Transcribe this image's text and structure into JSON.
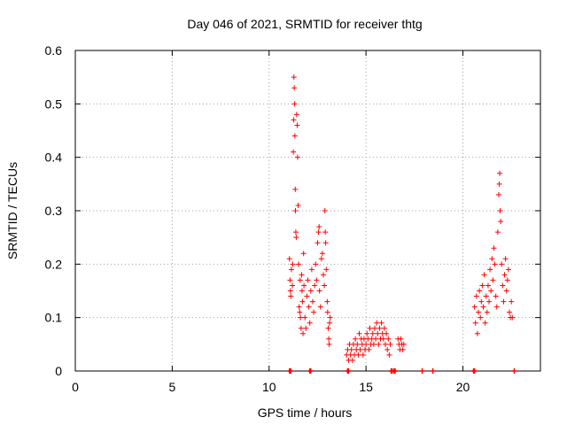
{
  "chart_data": {
    "type": "scatter",
    "title": "Day 046 of 2021, SRMTID for receiver thtg",
    "xlabel": "GPS time / hours",
    "ylabel": "SRMTID / TECUs",
    "xlim": [
      0,
      24
    ],
    "ylim": [
      0,
      0.6
    ],
    "xticks": [
      0,
      5,
      10,
      15,
      20
    ],
    "yticks": [
      0,
      0.1,
      0.2,
      0.3,
      0.4,
      0.5,
      0.6
    ],
    "grid": true,
    "marker": "+",
    "series": [
      {
        "name": "SRMTID",
        "color": "#ff0000",
        "points": [
          [
            11.05,
            0.21
          ],
          [
            11.08,
            0.17
          ],
          [
            11.1,
            0.15
          ],
          [
            11.12,
            0.14
          ],
          [
            11.15,
            0.19
          ],
          [
            11.2,
            0.16
          ],
          [
            11.22,
            0.2
          ],
          [
            11.25,
            0.41
          ],
          [
            11.27,
            0.47
          ],
          [
            11.28,
            0.55
          ],
          [
            11.3,
            0.53
          ],
          [
            11.32,
            0.5
          ],
          [
            11.33,
            0.44
          ],
          [
            11.35,
            0.34
          ],
          [
            11.36,
            0.3
          ],
          [
            11.38,
            0.26
          ],
          [
            11.4,
            0.25
          ],
          [
            11.42,
            0.48
          ],
          [
            11.45,
            0.46
          ],
          [
            11.47,
            0.4
          ],
          [
            11.5,
            0.31
          ],
          [
            11.52,
            0.2
          ],
          [
            11.55,
            0.12
          ],
          [
            11.58,
            0.11
          ],
          [
            11.6,
            0.17
          ],
          [
            11.62,
            0.1
          ],
          [
            11.65,
            0.08
          ],
          [
            11.68,
            0.18
          ],
          [
            11.7,
            0.15
          ],
          [
            11.72,
            0.13
          ],
          [
            11.75,
            0.07
          ],
          [
            11.78,
            0.22
          ],
          [
            11.8,
            0.16
          ],
          [
            11.85,
            0.1
          ],
          [
            11.9,
            0.08
          ],
          [
            11.95,
            0.14
          ],
          [
            12.0,
            0.17
          ],
          [
            12.05,
            0.12
          ],
          [
            12.1,
            0.09
          ],
          [
            12.15,
            0.15
          ],
          [
            12.2,
            0.19
          ],
          [
            12.25,
            0.13
          ],
          [
            12.3,
            0.11
          ],
          [
            12.35,
            0.16
          ],
          [
            12.4,
            0.2
          ],
          [
            12.45,
            0.17
          ],
          [
            12.5,
            0.24
          ],
          [
            12.55,
            0.26
          ],
          [
            12.58,
            0.27
          ],
          [
            12.6,
            0.15
          ],
          [
            12.65,
            0.12
          ],
          [
            12.7,
            0.21
          ],
          [
            12.75,
            0.22
          ],
          [
            12.8,
            0.18
          ],
          [
            12.85,
            0.16
          ],
          [
            12.88,
            0.3
          ],
          [
            12.9,
            0.26
          ],
          [
            12.92,
            0.24
          ],
          [
            12.95,
            0.19
          ],
          [
            13.0,
            0.13
          ],
          [
            13.02,
            0.11
          ],
          [
            13.05,
            0.08
          ],
          [
            13.08,
            0.06
          ],
          [
            13.1,
            0.05
          ],
          [
            13.12,
            0.09
          ],
          [
            13.15,
            0.1
          ],
          [
            14.0,
            0.03
          ],
          [
            14.05,
            0.04
          ],
          [
            14.1,
            0.02
          ],
          [
            14.15,
            0.05
          ],
          [
            14.2,
            0.03
          ],
          [
            14.25,
            0.04
          ],
          [
            14.3,
            0.02
          ],
          [
            14.35,
            0.05
          ],
          [
            14.4,
            0.03
          ],
          [
            14.45,
            0.06
          ],
          [
            14.5,
            0.04
          ],
          [
            14.55,
            0.05
          ],
          [
            14.6,
            0.03
          ],
          [
            14.65,
            0.07
          ],
          [
            14.7,
            0.04
          ],
          [
            14.75,
            0.06
          ],
          [
            14.8,
            0.05
          ],
          [
            14.85,
            0.03
          ],
          [
            14.9,
            0.06
          ],
          [
            14.95,
            0.04
          ],
          [
            15.0,
            0.05
          ],
          [
            15.05,
            0.07
          ],
          [
            15.1,
            0.06
          ],
          [
            15.15,
            0.04
          ],
          [
            15.2,
            0.08
          ],
          [
            15.25,
            0.05
          ],
          [
            15.3,
            0.06
          ],
          [
            15.35,
            0.07
          ],
          [
            15.4,
            0.05
          ],
          [
            15.45,
            0.08
          ],
          [
            15.5,
            0.06
          ],
          [
            15.55,
            0.09
          ],
          [
            15.6,
            0.07
          ],
          [
            15.65,
            0.05
          ],
          [
            15.7,
            0.08
          ],
          [
            15.75,
            0.06
          ],
          [
            15.8,
            0.09
          ],
          [
            15.85,
            0.07
          ],
          [
            15.9,
            0.06
          ],
          [
            15.95,
            0.08
          ],
          [
            16.0,
            0.05
          ],
          [
            16.05,
            0.07
          ],
          [
            16.1,
            0.04
          ],
          [
            16.15,
            0.06
          ],
          [
            16.2,
            0.03
          ],
          [
            16.25,
            0.05
          ],
          [
            16.65,
            0.06
          ],
          [
            16.7,
            0.05
          ],
          [
            16.75,
            0.04
          ],
          [
            16.8,
            0.06
          ],
          [
            16.85,
            0.05
          ],
          [
            16.9,
            0.04
          ],
          [
            16.95,
            0.05
          ],
          [
            20.6,
            0.12
          ],
          [
            20.65,
            0.09
          ],
          [
            20.7,
            0.14
          ],
          [
            20.75,
            0.07
          ],
          [
            20.8,
            0.11
          ],
          [
            20.85,
            0.15
          ],
          [
            20.9,
            0.1
          ],
          [
            20.95,
            0.13
          ],
          [
            21.0,
            0.16
          ],
          [
            21.05,
            0.12
          ],
          [
            21.1,
            0.18
          ],
          [
            21.15,
            0.09
          ],
          [
            21.2,
            0.14
          ],
          [
            21.25,
            0.11
          ],
          [
            21.3,
            0.16
          ],
          [
            21.35,
            0.13
          ],
          [
            21.4,
            0.19
          ],
          [
            21.45,
            0.15
          ],
          [
            21.5,
            0.21
          ],
          [
            21.55,
            0.17
          ],
          [
            21.6,
            0.23
          ],
          [
            21.65,
            0.2
          ],
          [
            21.7,
            0.14
          ],
          [
            21.75,
            0.12
          ],
          [
            21.8,
            0.26
          ],
          [
            21.85,
            0.33
          ],
          [
            21.88,
            0.35
          ],
          [
            21.9,
            0.37
          ],
          [
            21.92,
            0.3
          ],
          [
            21.95,
            0.28
          ],
          [
            22.0,
            0.2
          ],
          [
            22.05,
            0.16
          ],
          [
            22.1,
            0.13
          ],
          [
            22.15,
            0.18
          ],
          [
            22.2,
            0.21
          ],
          [
            22.25,
            0.15
          ],
          [
            22.3,
            0.17
          ],
          [
            22.35,
            0.19
          ],
          [
            22.4,
            0.11
          ],
          [
            22.45,
            0.1
          ],
          [
            22.5,
            0.13
          ],
          [
            22.55,
            0.1
          ]
        ]
      }
    ],
    "baseline_points_x": [
      11.05,
      11.12,
      12.1,
      12.15,
      14.05,
      14.1,
      16.3,
      16.35,
      16.45,
      16.5,
      17.9,
      18.45,
      20.55,
      20.6,
      22.65
    ]
  }
}
